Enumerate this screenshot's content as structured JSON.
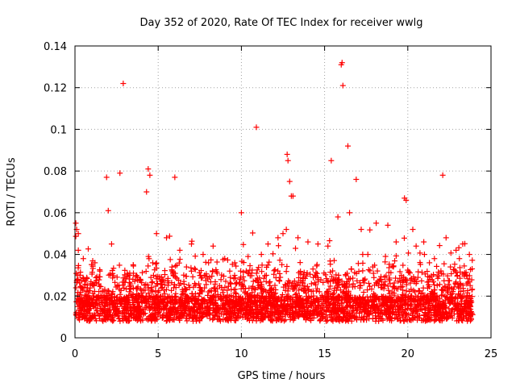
{
  "chart_data": {
    "type": "scatter",
    "title": "Day 352 of 2020, Rate Of TEC Index for receiver wwlg",
    "xlabel": "GPS time / hours",
    "ylabel": "ROTI / TECUs",
    "xlim": [
      0,
      25
    ],
    "ylim": [
      0,
      0.14
    ],
    "x_ticks": [
      0,
      5,
      10,
      15,
      20,
      25
    ],
    "x_tick_labels": [
      "0",
      "5",
      "10",
      "15",
      "20",
      "25"
    ],
    "y_ticks": [
      0,
      0.02,
      0.04,
      0.06,
      0.08,
      0.1,
      0.12,
      0.14
    ],
    "y_tick_labels": [
      "0",
      "0.02",
      "0.04",
      "0.06",
      "0.08",
      "0.1",
      "0.12",
      "0.14"
    ],
    "grid": true,
    "marker": "+",
    "marker_color": "#ff0000",
    "series": [
      {
        "name": "ROTI",
        "x": [
          0.05,
          0.1,
          0.2,
          0.3,
          2.9,
          10.9,
          12.75,
          16.0,
          16.05,
          16.1,
          22.1,
          15.4,
          16.4,
          12.8,
          12.9,
          4.4,
          4.5,
          6.0,
          13.0,
          13.1,
          16.9,
          19.8,
          19.9,
          1.9,
          2.7,
          20.3,
          12.7,
          10.0,
          2.0,
          4.3,
          0.2,
          0.5,
          1.2,
          1.5,
          2.2,
          3.5,
          4.9,
          5.5,
          6.3,
          7.0,
          7.7,
          8.3,
          9.0,
          9.6,
          10.4,
          11.2,
          11.6,
          12.2,
          12.5,
          13.4,
          14.0,
          14.6,
          15.2,
          15.8,
          16.5,
          17.2,
          17.6,
          18.1,
          18.8,
          19.3,
          20.5,
          21.0,
          21.6,
          22.3,
          22.9,
          23.3,
          23.7,
          3.3,
          6.7,
          9.3,
          11.5,
          14.3,
          17.9,
          21.3,
          23.1
        ],
        "y": [
          0.055,
          0.052,
          0.05,
          0.03,
          0.122,
          0.101,
          0.088,
          0.131,
          0.132,
          0.121,
          0.078,
          0.085,
          0.092,
          0.085,
          0.075,
          0.081,
          0.078,
          0.077,
          0.068,
          0.068,
          0.076,
          0.067,
          0.066,
          0.077,
          0.079,
          0.052,
          0.052,
          0.06,
          0.061,
          0.07,
          0.042,
          0.038,
          0.036,
          0.032,
          0.045,
          0.035,
          0.05,
          0.048,
          0.042,
          0.045,
          0.04,
          0.044,
          0.038,
          0.036,
          0.039,
          0.04,
          0.045,
          0.048,
          0.05,
          0.048,
          0.046,
          0.045,
          0.044,
          0.058,
          0.06,
          0.052,
          0.04,
          0.055,
          0.054,
          0.046,
          0.044,
          0.04,
          0.038,
          0.048,
          0.042,
          0.045,
          0.04,
          0.03,
          0.034,
          0.032,
          0.03,
          0.033,
          0.034,
          0.036,
          0.038
        ]
      }
    ]
  }
}
